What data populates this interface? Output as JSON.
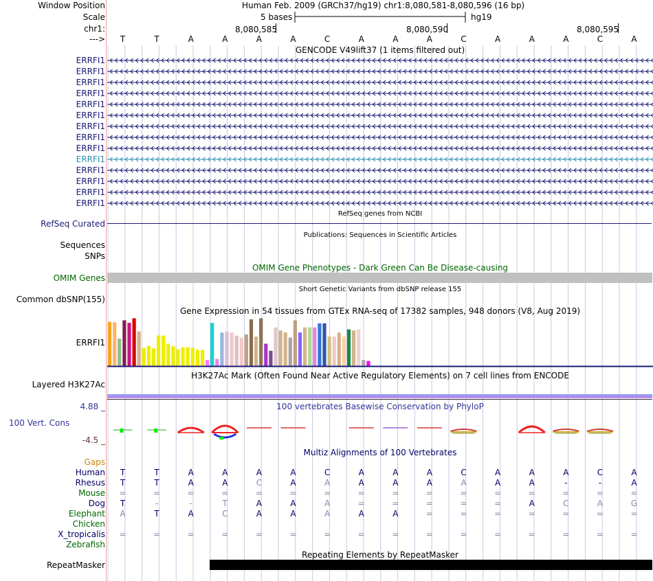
{
  "header": {
    "window_position_label": "Window Position",
    "window_position_value": "Human Feb. 2009 (GRCh37/hg19)   chr1:8,080,581-8,080,596 (16 bp)",
    "scale_label": "Scale",
    "scale_value": "5 bases",
    "scale_assembly": "hg19",
    "chrom_label": "chr1:",
    "strand_label": "--->",
    "positions": [
      "8,080,585",
      "8,080,590",
      "8,080,595"
    ]
  },
  "sequence": [
    "T",
    "T",
    "A",
    "A",
    "A",
    "A",
    "C",
    "A",
    "A",
    "A",
    "C",
    "A",
    "A",
    "A",
    "C",
    "A"
  ],
  "gencode": {
    "title": "GENCODE V49lift37 (1 items filtered out)",
    "rows": [
      {
        "label": "ERRFI1",
        "color": "#1a1a73"
      },
      {
        "label": "ERRFI1",
        "color": "#1a1a73"
      },
      {
        "label": "ERRFI1",
        "color": "#1a1a73"
      },
      {
        "label": "ERRFI1",
        "color": "#1a1a73"
      },
      {
        "label": "ERRFI1",
        "color": "#1a1a73"
      },
      {
        "label": "ERRFI1",
        "color": "#1a1a73"
      },
      {
        "label": "ERRFI1",
        "color": "#1a1a73"
      },
      {
        "label": "ERRFI1",
        "color": "#1a1a73"
      },
      {
        "label": "ERRFI1",
        "color": "#1a1a73"
      },
      {
        "label": "ERRFI1",
        "color": "#2a8fb0"
      },
      {
        "label": "ERRFI1",
        "color": "#1a1a73"
      },
      {
        "label": "ERRFI1",
        "color": "#1a1a73"
      },
      {
        "label": "ERRFI1",
        "color": "#1a1a73"
      },
      {
        "label": "ERRFI1",
        "color": "#1a1a73"
      }
    ]
  },
  "refseq": {
    "title": "RefSeq genes from NCBI",
    "label": "RefSeq Curated"
  },
  "publications": {
    "title": "Publications: Sequences in Scientific Articles",
    "label1": "Sequences",
    "label2": "SNPs"
  },
  "omim": {
    "title": "OMIM Gene Phenotypes - Dark Green Can Be Disease-causing",
    "label": "OMIM Genes"
  },
  "dbsnp": {
    "title": "Short Genetic Variants from dbSNP release 155",
    "label": "Common dbSNP(155)"
  },
  "gtex": {
    "title": "Gene Expression in 54 tissues from GTEx RNA-seq of 17382 samples, 948 donors (V8, Aug 2019)",
    "label": "ERRFI1",
    "bars": [
      {
        "v": 0.87,
        "c": "#f5a623"
      },
      {
        "v": 0.86,
        "c": "#ffb366"
      },
      {
        "v": 0.54,
        "c": "#8fbc8f"
      },
      {
        "v": 0.9,
        "c": "#8b1a4f"
      },
      {
        "v": 0.85,
        "c": "#c71585"
      },
      {
        "v": 0.94,
        "c": "#dd0000"
      },
      {
        "v": 0.68,
        "c": "#d2b48c"
      },
      {
        "v": 0.36,
        "c": "#eeee00"
      },
      {
        "v": 0.4,
        "c": "#eeee00"
      },
      {
        "v": 0.35,
        "c": "#eeee00"
      },
      {
        "v": 0.6,
        "c": "#eeee00"
      },
      {
        "v": 0.6,
        "c": "#eeee00"
      },
      {
        "v": 0.44,
        "c": "#eeee00"
      },
      {
        "v": 0.39,
        "c": "#eeee00"
      },
      {
        "v": 0.33,
        "c": "#eeee00"
      },
      {
        "v": 0.37,
        "c": "#eeee00"
      },
      {
        "v": 0.37,
        "c": "#eeee00"
      },
      {
        "v": 0.36,
        "c": "#eeee00"
      },
      {
        "v": 0.32,
        "c": "#eeee00"
      },
      {
        "v": 0.32,
        "c": "#eeee00"
      },
      {
        "v": 0.12,
        "c": "#ff77ff"
      },
      {
        "v": 0.85,
        "c": "#1ad1d1"
      },
      {
        "v": 0.14,
        "c": "#ee82ee"
      },
      {
        "v": 0.66,
        "c": "#9ab8d8"
      },
      {
        "v": 0.68,
        "c": "#d8bfd8"
      },
      {
        "v": 0.66,
        "c": "#f0c8c8"
      },
      {
        "v": 0.6,
        "c": "#ddc0c0"
      },
      {
        "v": 0.56,
        "c": "#f5c8c8"
      },
      {
        "v": 0.62,
        "c": "#c0a080"
      },
      {
        "v": 0.92,
        "c": "#8b6c4f"
      },
      {
        "v": 0.58,
        "c": "#d2b48c"
      },
      {
        "v": 0.94,
        "c": "#8b7355"
      },
      {
        "v": 0.44,
        "c": "#aa33cc"
      },
      {
        "v": 0.3,
        "c": "#7b4a8f"
      },
      {
        "v": 0.76,
        "c": "#e0c8c8"
      },
      {
        "v": 0.7,
        "c": "#d2b48c"
      },
      {
        "v": 0.66,
        "c": "#d2b48c"
      },
      {
        "v": 0.56,
        "c": "#b0a0a0"
      },
      {
        "v": 0.9,
        "c": "#c0a080"
      },
      {
        "v": 0.66,
        "c": "#8866ff"
      },
      {
        "v": 0.76,
        "c": "#d2b48c"
      },
      {
        "v": 0.76,
        "c": "#b0d890"
      },
      {
        "v": 0.76,
        "c": "#dd88dd"
      },
      {
        "v": 0.84,
        "c": "#3377dd"
      },
      {
        "v": 0.84,
        "c": "#3355aa"
      },
      {
        "v": 0.58,
        "c": "#d0c080"
      },
      {
        "v": 0.58,
        "c": "#f0c8c8"
      },
      {
        "v": 0.66,
        "c": "#d2b48c"
      },
      {
        "v": 0.58,
        "c": "#ffd0a0"
      },
      {
        "v": 0.72,
        "c": "#1a8844"
      },
      {
        "v": 0.7,
        "c": "#d2b48c"
      },
      {
        "v": 0.72,
        "c": "#f0d0d0"
      },
      {
        "v": 0.12,
        "c": "#aaaaaa"
      },
      {
        "v": 0.1,
        "c": "#ff00ff"
      }
    ]
  },
  "h3k27ac": {
    "title": "H3K27Ac Mark (Often Found Near Active Regulatory Elements) on 7 cell lines from ENCODE",
    "label": "Layered H3K27Ac"
  },
  "phylop": {
    "title": "100 vertebrates Basewise Conservation by PhyloP",
    "label": "100 Vert. Cons",
    "max_label": "4.88 _",
    "min_label": "-4.5 _"
  },
  "multiz": {
    "title": "Multiz Alignments of 100 Vertebrates",
    "gaps_label": "Gaps",
    "species": [
      {
        "name": "Human",
        "color": "#000066",
        "bases": [
          "T",
          "T",
          "A",
          "A",
          "A",
          "A",
          "C",
          "A",
          "A",
          "A",
          "C",
          "A",
          "A",
          "A",
          "C",
          "A"
        ]
      },
      {
        "name": "Rhesus",
        "color": "#000066",
        "bases": [
          "T",
          "T",
          "A",
          "A",
          "C",
          "A",
          "A",
          "A",
          "A",
          "A",
          "A",
          "A",
          "A",
          "-",
          "-",
          "A"
        ]
      },
      {
        "name": "Mouse",
        "color": "#006600",
        "bases": [
          "=",
          "=",
          "=",
          "=",
          "=",
          "=",
          "=",
          "=",
          "=",
          "=",
          "=",
          "=",
          "=",
          "=",
          "=",
          "="
        ]
      },
      {
        "name": "Dog",
        "color": "#000066",
        "bases": [
          "T",
          "-",
          "-",
          "T",
          "A",
          "A",
          "A",
          "=",
          "=",
          "=",
          "=",
          "=",
          "A",
          "C",
          "A",
          "G"
        ]
      },
      {
        "name": "Elephant",
        "color": "#006600",
        "bases": [
          "A",
          "T",
          "A",
          "C",
          "A",
          "A",
          "A",
          "A",
          "A",
          "=",
          "=",
          "=",
          "=",
          "=",
          "=",
          "="
        ]
      },
      {
        "name": "Chicken",
        "color": "#006600",
        "bases": []
      },
      {
        "name": "X_tropicalis",
        "color": "#000066",
        "bases": [
          "=",
          "=",
          "=",
          "=",
          "=",
          "=",
          "=",
          "=",
          "=",
          "=",
          "=",
          "=",
          "=",
          "=",
          "=",
          "="
        ]
      },
      {
        "name": "Zebrafish",
        "color": "#006600",
        "bases": []
      }
    ],
    "faded": {
      "1": [
        4,
        6,
        10
      ],
      "2": [
        0,
        1,
        2,
        3,
        4,
        5,
        6,
        7,
        8,
        9,
        10,
        11,
        12,
        13,
        14,
        15
      ],
      "3": [
        1,
        2,
        3,
        6,
        7,
        8,
        9,
        10,
        11,
        13,
        14,
        15
      ],
      "4": [
        0,
        3,
        6,
        9,
        10,
        11,
        12,
        13,
        14,
        15
      ],
      "6": [
        0,
        1,
        2,
        3,
        4,
        5,
        6,
        7,
        8,
        9,
        10,
        11,
        12,
        13,
        14,
        15
      ]
    }
  },
  "repeatmasker": {
    "title": "Repeating Elements by RepeatMasker",
    "label": "RepeatMasker"
  },
  "colors": {
    "label_blue": "#1a1a73",
    "omim_green": "#006600",
    "gaps_orange": "#cc8800",
    "phylop_blue": "#333399",
    "phylop_min": "#663333",
    "grid": "#c8c8e0",
    "left_border": "#f0a0a0"
  }
}
